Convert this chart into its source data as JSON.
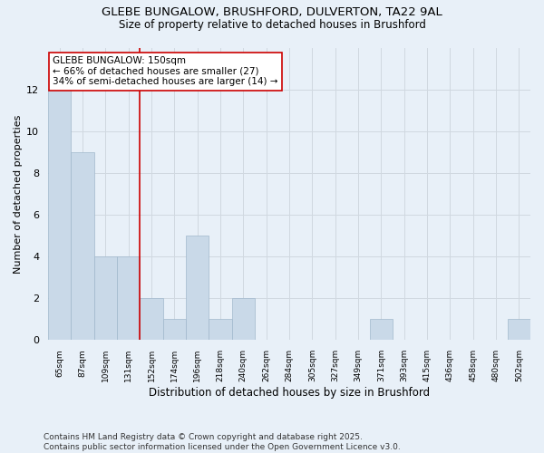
{
  "title_line1": "GLEBE BUNGALOW, BRUSHFORD, DULVERTON, TA22 9AL",
  "title_line2": "Size of property relative to detached houses in Brushford",
  "xlabel": "Distribution of detached houses by size in Brushford",
  "ylabel": "Number of detached properties",
  "footer": "Contains HM Land Registry data © Crown copyright and database right 2025.\nContains public sector information licensed under the Open Government Licence v3.0.",
  "categories": [
    "65sqm",
    "87sqm",
    "109sqm",
    "131sqm",
    "152sqm",
    "174sqm",
    "196sqm",
    "218sqm",
    "240sqm",
    "262sqm",
    "284sqm",
    "305sqm",
    "327sqm",
    "349sqm",
    "371sqm",
    "393sqm",
    "415sqm",
    "436sqm",
    "458sqm",
    "480sqm",
    "502sqm"
  ],
  "bar_values": [
    12,
    9,
    4,
    4,
    2,
    1,
    5,
    1,
    2,
    0,
    0,
    0,
    0,
    0,
    1,
    0,
    0,
    0,
    0,
    0,
    1
  ],
  "bar_color": "#c9d9e8",
  "bar_edgecolor": "#a0b8cc",
  "grid_color": "#d0d8e0",
  "background_color": "#e8f0f8",
  "vline_color": "#cc0000",
  "annotation_text": "GLEBE BUNGALOW: 150sqm\n← 66% of detached houses are smaller (27)\n34% of semi-detached houses are larger (14) →",
  "annotation_box_color": "#ffffff",
  "annotation_border_color": "#cc0000",
  "ylim": [
    0,
    14
  ],
  "yticks": [
    0,
    2,
    4,
    6,
    8,
    10,
    12
  ],
  "title_fontsize": 9.5,
  "subtitle_fontsize": 8.5,
  "annotation_fontsize": 7.5,
  "footer_fontsize": 6.5,
  "ylabel_fontsize": 8,
  "xlabel_fontsize": 8.5
}
